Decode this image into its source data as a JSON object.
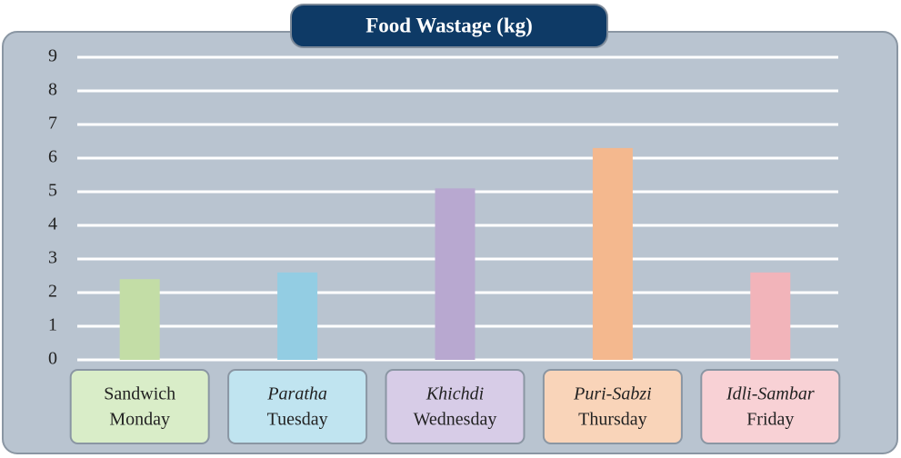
{
  "chart_data": {
    "type": "bar",
    "title": "Food Wastage (kg)",
    "categories": [
      "Monday",
      "Tuesday",
      "Wednesday",
      "Thursday",
      "Friday"
    ],
    "dishes": [
      "Sandwich",
      "Paratha",
      "Khichdi",
      "Puri-Sabzi",
      "Idli-Sambar"
    ],
    "values": [
      2.4,
      2.6,
      5.1,
      6.3,
      2.6
    ],
    "colors": [
      "#c3dda6",
      "#93cde3",
      "#b8a8d0",
      "#f4b88e",
      "#f2b4ba"
    ],
    "ylim": [
      0,
      9
    ],
    "yticks": [
      0,
      1,
      2,
      3,
      4,
      5,
      6,
      7,
      8,
      9
    ],
    "grid": true
  }
}
